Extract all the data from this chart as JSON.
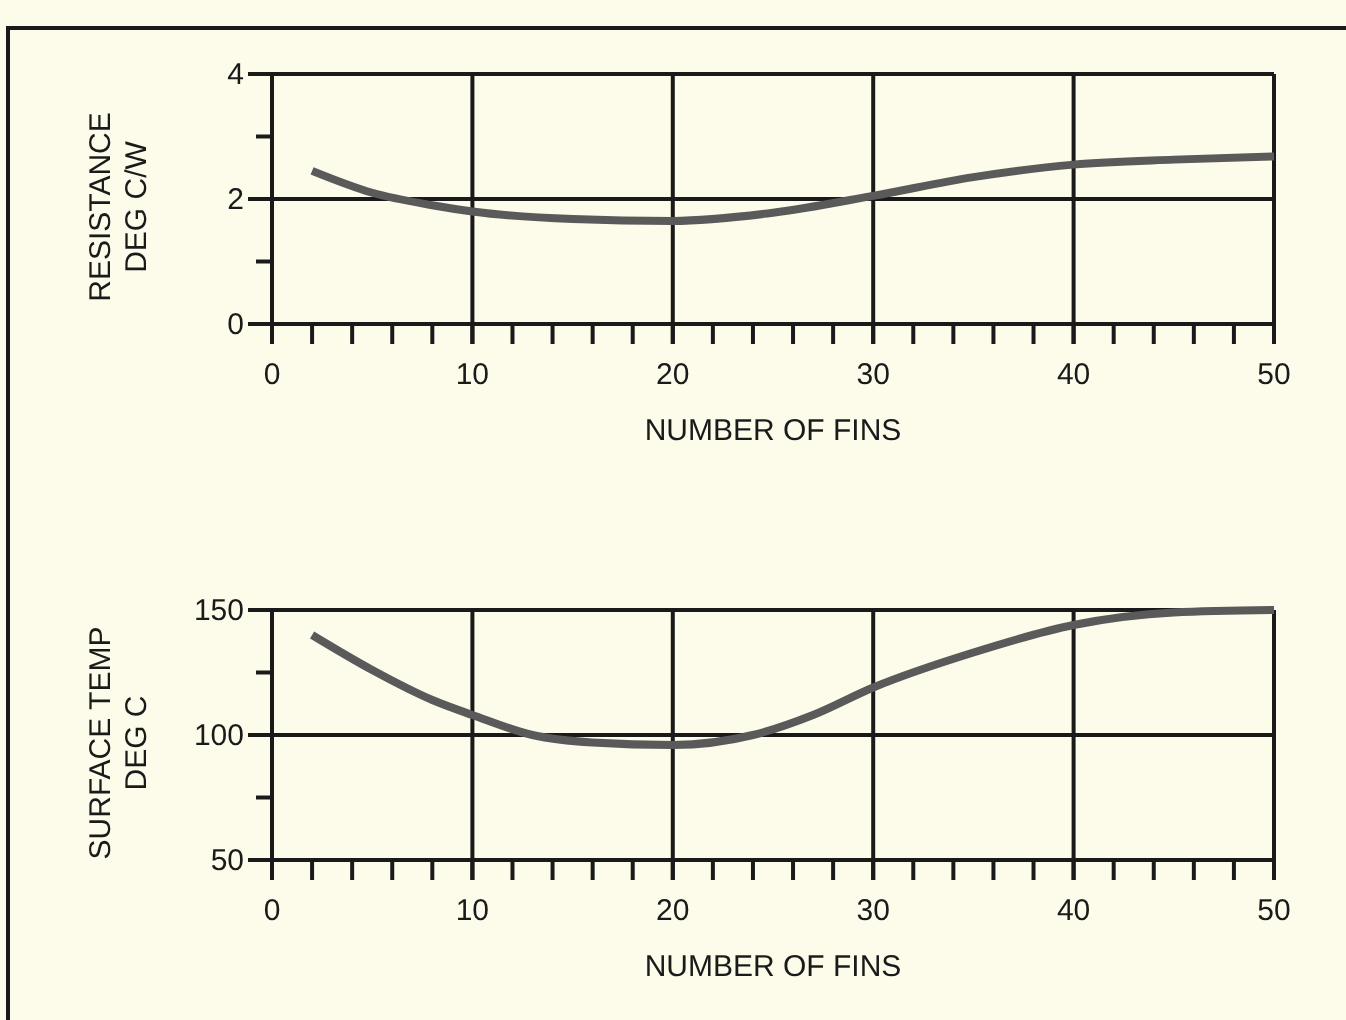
{
  "chart_data": [
    {
      "type": "line",
      "xlabel": "NUMBER OF FINS",
      "ylabel": "RESISTANCE\nDEG C/W",
      "xlim": [
        0,
        50
      ],
      "ylim": [
        0,
        4
      ],
      "xticks": [
        0,
        {
          "value": 2,
          "label": null
        },
        {
          "value": 4,
          "label": null
        },
        {
          "value": 6,
          "label": null
        },
        {
          "value": 8,
          "label": null
        },
        10,
        {
          "value": 12,
          "label": null
        },
        {
          "value": 14,
          "label": null
        },
        {
          "value": 16,
          "label": null
        },
        {
          "value": 18,
          "label": null
        },
        20,
        {
          "value": 22,
          "label": null
        },
        {
          "value": 24,
          "label": null
        },
        {
          "value": 26,
          "label": null
        },
        {
          "value": 28,
          "label": null
        },
        30,
        {
          "value": 32,
          "label": null
        },
        {
          "value": 34,
          "label": null
        },
        {
          "value": 36,
          "label": null
        },
        {
          "value": 38,
          "label": null
        },
        40,
        {
          "value": 42,
          "label": null
        },
        {
          "value": 44,
          "label": null
        },
        {
          "value": 46,
          "label": null
        },
        {
          "value": 48,
          "label": null
        },
        50
      ],
      "yticks": [
        0,
        {
          "value": 1,
          "label": null
        },
        2,
        {
          "value": 3,
          "label": null
        },
        4
      ],
      "grid": true,
      "series": [
        {
          "color": "#5a5a5a",
          "x": [
            2,
            5,
            8,
            10,
            15,
            20,
            25,
            30,
            35,
            40,
            45,
            50
          ],
          "values": [
            2.45,
            2.1,
            1.9,
            1.8,
            1.68,
            1.65,
            1.78,
            2.05,
            2.35,
            2.55,
            2.63,
            2.68
          ]
        }
      ]
    },
    {
      "type": "line",
      "xlabel": "NUMBER OF FINS",
      "ylabel": "SURFACE TEMP\nDEG C",
      "xlim": [
        0,
        50
      ],
      "ylim": [
        50,
        150
      ],
      "xticks": [
        0,
        {
          "value": 2,
          "label": null
        },
        {
          "value": 4,
          "label": null
        },
        {
          "value": 6,
          "label": null
        },
        {
          "value": 8,
          "label": null
        },
        10,
        {
          "value": 12,
          "label": null
        },
        {
          "value": 14,
          "label": null
        },
        {
          "value": 16,
          "label": null
        },
        {
          "value": 18,
          "label": null
        },
        20,
        {
          "value": 22,
          "label": null
        },
        {
          "value": 24,
          "label": null
        },
        {
          "value": 26,
          "label": null
        },
        {
          "value": 28,
          "label": null
        },
        30,
        {
          "value": 32,
          "label": null
        },
        {
          "value": 34,
          "label": null
        },
        {
          "value": 36,
          "label": null
        },
        {
          "value": 38,
          "label": null
        },
        40,
        {
          "value": 42,
          "label": null
        },
        {
          "value": 44,
          "label": null
        },
        {
          "value": 46,
          "label": null
        },
        {
          "value": 48,
          "label": null
        },
        50
      ],
      "yticks": [
        50,
        {
          "value": 75,
          "label": null
        },
        100,
        {
          "value": 125,
          "label": null
        },
        150
      ],
      "grid": true,
      "series": [
        {
          "color": "#5a5a5a",
          "x": [
            2,
            5,
            8,
            10,
            13,
            16,
            20,
            24,
            27,
            30,
            35,
            40,
            45,
            50
          ],
          "values": [
            140,
            126,
            114,
            108,
            100,
            97,
            96,
            100,
            108,
            119,
            133,
            144,
            149,
            150
          ]
        }
      ]
    }
  ]
}
